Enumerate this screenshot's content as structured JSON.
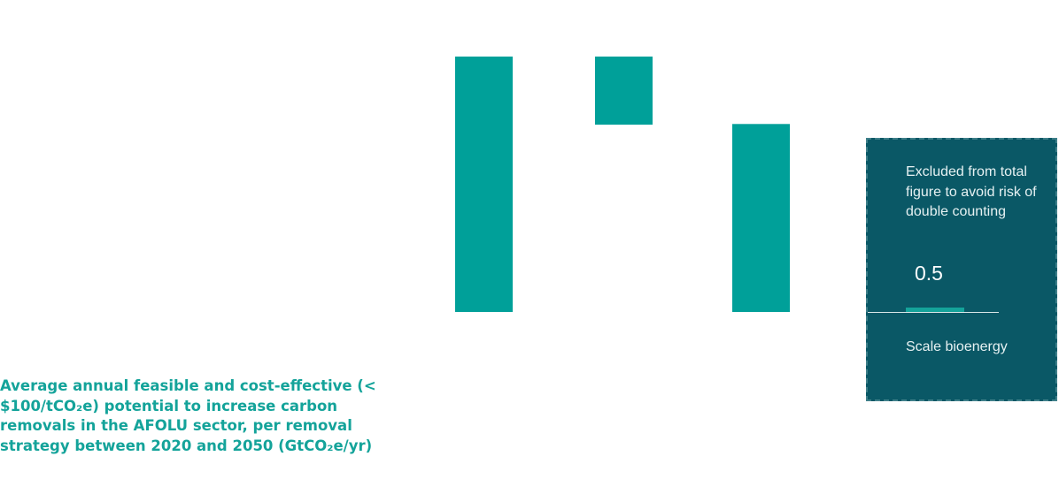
{
  "caption": "Average annual feasible and cost-effective (< $100/tCO₂e) potential to increase carbon removals in the AFOLU sector, per removal strategy between 2020 and 2050 (GtCO₂e/yr)",
  "colors": {
    "bar": "#00a099",
    "box_bg": "#0a5866",
    "caption": "#14a39a"
  },
  "chart_data": {
    "type": "bar",
    "subtype": "waterfall",
    "units": "GtCO₂e/yr",
    "bars": [
      {
        "base": 0.0,
        "top": 3.75
      },
      {
        "base": 2.75,
        "top": 3.75
      },
      {
        "base": 0.0,
        "top": 2.76
      }
    ],
    "ylim": [
      0,
      3.75
    ],
    "grid": false,
    "legend": "none"
  },
  "excluded_box": {
    "note": "Excluded from total figure to avoid risk of double counting",
    "value": 0.5,
    "value_text": "0.5",
    "label": "Scale bioenergy"
  }
}
